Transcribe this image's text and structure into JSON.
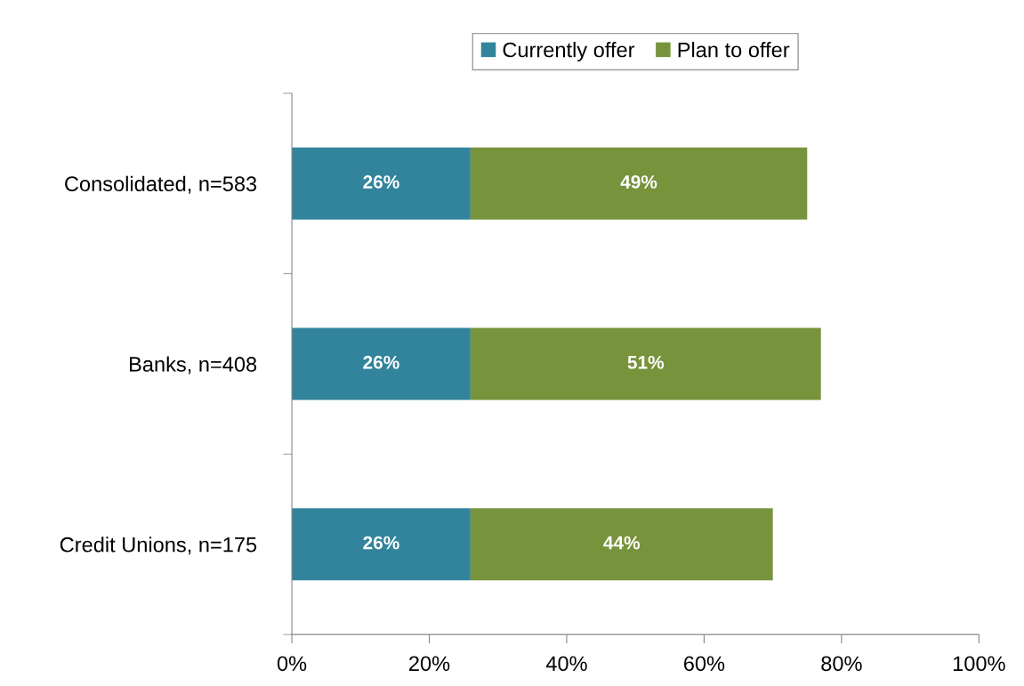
{
  "chart_data": {
    "type": "bar",
    "orientation": "horizontal",
    "stacked": true,
    "categories": [
      "Consolidated, n=583",
      "Banks, n=408",
      "Credit Unions, n=175"
    ],
    "series": [
      {
        "name": "Currently offer",
        "color": "#31849b",
        "values": [
          26,
          26,
          26
        ],
        "value_labels": [
          "26%",
          "26%",
          "26%"
        ]
      },
      {
        "name": "Plan to offer",
        "color": "#77933c",
        "values": [
          49,
          51,
          44
        ],
        "value_labels": [
          "49%",
          "51%",
          "44%"
        ]
      }
    ],
    "xlim": [
      0,
      100
    ],
    "xticks": [
      {
        "value": 0,
        "label": "0%"
      },
      {
        "value": 20,
        "label": "20%"
      },
      {
        "value": 40,
        "label": "40%"
      },
      {
        "value": 60,
        "label": "60%"
      },
      {
        "value": 80,
        "label": "80%"
      },
      {
        "value": 100,
        "label": "100%"
      }
    ],
    "grid": false,
    "legend": "top"
  }
}
